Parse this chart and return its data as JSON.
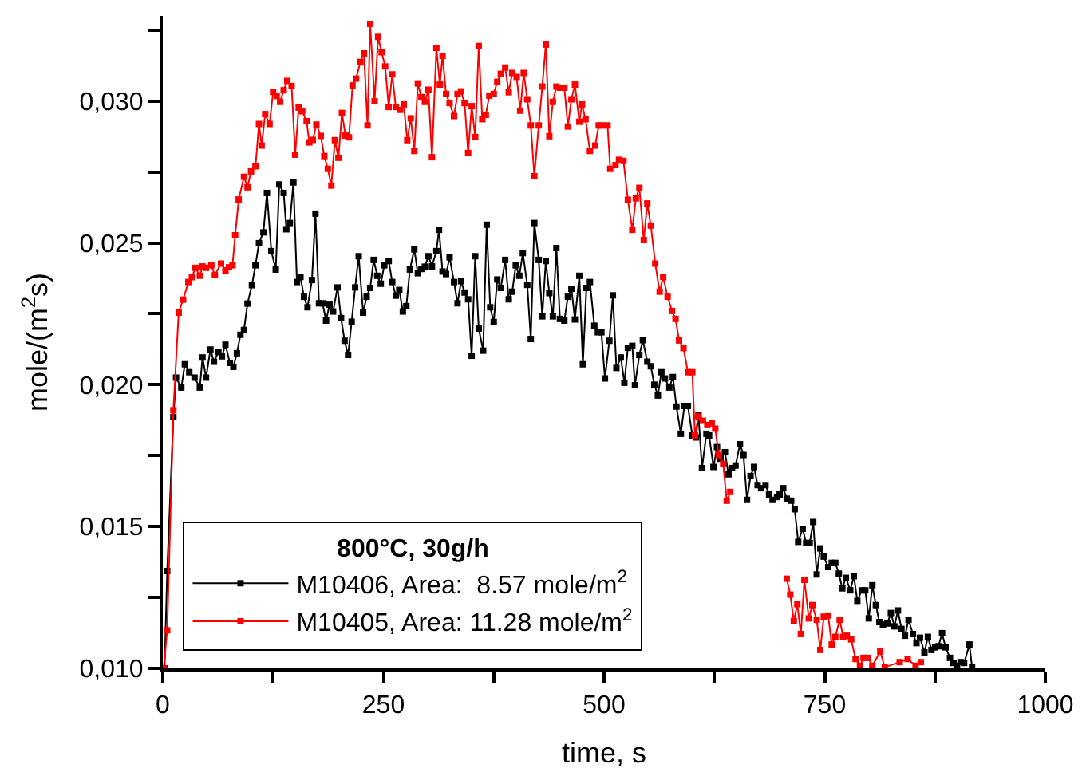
{
  "chart_data": {
    "type": "line",
    "xlabel": "time, s",
    "ylabel": "mole/(m$^{2}$s)",
    "legend_title": "800°C, 30g/h",
    "legend": "bottom left",
    "marker": "square",
    "line_style": "solid",
    "xlim": [
      0,
      1000
    ],
    "xticks": [
      0,
      {
        "value": 125,
        "label": null
      },
      250,
      {
        "value": 375,
        "label": null
      },
      500,
      {
        "value": 625,
        "label": null
      },
      750,
      {
        "value": 875,
        "label": null
      },
      1000
    ],
    "ylim": [
      0.01,
      0.033
    ],
    "yticks": [
      {
        "value": 0.01,
        "label": "0,010"
      },
      {
        "value": 0.0125,
        "label": null
      },
      {
        "value": 0.015,
        "label": "0,015"
      },
      {
        "value": 0.0175,
        "label": null
      },
      {
        "value": 0.02,
        "label": "0,020"
      },
      {
        "value": 0.0225,
        "label": null
      },
      {
        "value": 0.025,
        "label": "0,025"
      },
      {
        "value": 0.0275,
        "label": null
      },
      {
        "value": 0.03,
        "label": "0,030"
      },
      {
        "value": 0.0325,
        "label": null
      }
    ],
    "series": [
      {
        "name": "M10406, Area:  8.57 mole/m$^{2}$",
        "color": "#000000",
        "x": [
          2,
          5,
          12,
          15,
          21,
          25,
          30,
          36,
          42,
          45,
          49,
          54,
          58,
          63,
          67,
          71,
          76,
          80,
          84,
          88,
          92,
          96,
          101,
          105,
          109,
          114,
          118,
          123,
          128,
          132,
          137,
          140,
          144,
          148,
          152,
          156,
          160,
          164,
          169,
          173,
          177,
          181,
          185,
          189,
          193,
          198,
          202,
          206,
          210,
          214,
          218,
          222,
          227,
          231,
          235,
          239,
          243,
          247,
          251,
          256,
          260,
          264,
          268,
          272,
          276,
          280,
          285,
          289,
          293,
          297,
          301,
          305,
          310,
          313,
          317,
          321,
          325,
          330,
          334,
          338,
          342,
          346,
          350,
          354,
          358,
          363,
          367,
          371,
          375,
          379,
          383,
          388,
          392,
          396,
          400,
          404,
          408,
          413,
          417,
          421,
          426,
          430,
          434,
          438,
          442,
          446,
          450,
          455,
          459,
          463,
          467,
          472,
          476,
          480,
          484,
          489,
          493,
          497,
          501,
          506,
          510,
          514,
          519,
          523,
          527,
          532,
          535,
          540,
          544,
          549,
          553,
          557,
          561,
          565,
          569,
          574,
          578,
          582,
          587,
          591,
          595,
          600,
          604,
          607,
          611,
          616,
          619,
          624,
          628,
          632,
          637,
          641,
          645,
          649,
          654,
          658,
          662,
          666,
          670,
          674,
          678,
          683,
          687,
          691,
          696,
          699,
          703,
          707,
          712,
          716,
          720,
          725,
          729,
          733,
          737,
          741,
          745,
          749,
          754,
          758,
          762,
          766,
          770,
          774,
          779,
          783,
          787,
          792,
          796,
          800,
          804,
          808,
          812,
          816,
          821,
          825,
          829,
          833,
          837,
          841,
          845,
          850,
          854,
          858,
          863,
          867,
          871,
          875,
          879,
          883,
          887,
          892,
          896,
          900,
          904,
          908,
          914,
          917
        ],
        "values": [
          0.01,
          0.01343,
          0.01886,
          0.02025,
          0.0199,
          0.02072,
          0.02044,
          0.02025,
          0.0199,
          0.02096,
          0.02025,
          0.02124,
          0.02081,
          0.02115,
          0.021,
          0.02141,
          0.02077,
          0.02063,
          0.02111,
          0.02176,
          0.02193,
          0.02286,
          0.02351,
          0.02421,
          0.02499,
          0.02537,
          0.02676,
          0.02471,
          0.02406,
          0.02706,
          0.02676,
          0.02548,
          0.0257,
          0.02713,
          0.02362,
          0.0238,
          0.0231,
          0.02273,
          0.02369,
          0.02603,
          0.02287,
          0.02287,
          0.02226,
          0.02282,
          0.02258,
          0.02343,
          0.02235,
          0.02155,
          0.02105,
          0.02222,
          0.02343,
          0.02453,
          0.02254,
          0.0231,
          0.02341,
          0.0244,
          0.02384,
          0.02356,
          0.02421,
          0.02436,
          0.02362,
          0.02314,
          0.02334,
          0.02258,
          0.02277,
          0.02406,
          0.02477,
          0.02393,
          0.02408,
          0.02416,
          0.02453,
          0.02417,
          0.02471,
          0.02546,
          0.02399,
          0.0239,
          0.02449,
          0.02362,
          0.02287,
          0.02365,
          0.02325,
          0.02301,
          0.02102,
          0.02453,
          0.02198,
          0.0212,
          0.02564,
          0.02273,
          0.02221,
          0.02371,
          0.02341,
          0.0244,
          0.02301,
          0.02328,
          0.02421,
          0.02384,
          0.02464,
          0.02352,
          0.02161,
          0.0257,
          0.0244,
          0.02241,
          0.02436,
          0.02323,
          0.02241,
          0.02482,
          0.02232,
          0.02226,
          0.0231,
          0.02338,
          0.0223,
          0.02384,
          0.02072,
          0.02341,
          0.02362,
          0.02208,
          0.02185,
          0.02185,
          0.02022,
          0.02155,
          0.02315,
          0.02059,
          0.02096,
          0.02007,
          0.0213,
          0.02137,
          0.01998,
          0.02105,
          0.02157,
          0.02081,
          0.02065,
          0.02,
          0.01962,
          0.02044,
          0.02022,
          0.0199,
          0.02027,
          0.01923,
          0.01827,
          0.01925,
          0.01925,
          0.01821,
          0.01814,
          0.01892,
          0.01706,
          0.01827,
          0.01821,
          0.0171,
          0.0178,
          0.01739,
          0.01762,
          0.01684,
          0.01706,
          0.01715,
          0.0179,
          0.01752,
          0.01594,
          0.01678,
          0.0171,
          0.01646,
          0.01635,
          0.01646,
          0.01613,
          0.01594,
          0.01604,
          0.01613,
          0.01635,
          0.01598,
          0.01591,
          0.01561,
          0.01446,
          0.01492,
          0.01442,
          0.01442,
          0.01516,
          0.01331,
          0.01423,
          0.01394,
          0.01357,
          0.01372,
          0.01372,
          0.01334,
          0.01282,
          0.01319,
          0.01275,
          0.01325,
          0.01238,
          0.01275,
          0.01275,
          0.01176,
          0.01293,
          0.01223,
          0.01163,
          0.01154,
          0.01158,
          0.01195,
          0.01148,
          0.01204,
          0.01139,
          0.01115,
          0.01171,
          0.01121,
          0.01089,
          0.01108,
          0.01056,
          0.01111,
          0.01065,
          0.01074,
          0.01078,
          0.01124,
          0.01074,
          0.01037,
          0.01019,
          0.01009,
          0.01022,
          0.01019,
          0.01084,
          0.01004
        ]
      },
      {
        "name": "M10405, Area: 11.28 mole/m$^{2}$",
        "color": "#ff0000",
        "x": [
          1,
          5,
          12,
          18,
          23,
          29,
          33,
          37,
          42,
          45,
          49,
          55,
          59,
          66,
          71,
          75,
          79,
          82,
          86,
          92,
          96,
          100,
          105,
          109,
          112,
          116,
          121,
          125,
          129,
          133,
          137,
          141,
          146,
          150,
          154,
          158,
          163,
          166,
          170,
          174,
          179,
          183,
          187,
          191,
          195,
          199,
          203,
          207,
          211,
          215,
          219,
          224,
          228,
          232,
          235,
          240,
          244,
          248,
          252,
          256,
          260,
          264,
          269,
          273,
          277,
          281,
          285,
          289,
          293,
          297,
          301,
          305,
          310,
          314,
          317,
          321,
          325,
          330,
          334,
          338,
          342,
          346,
          350,
          354,
          358,
          362,
          366,
          370,
          375,
          379,
          383,
          388,
          392,
          396,
          401,
          405,
          409,
          413,
          417,
          421,
          426,
          430,
          434,
          438,
          442,
          446,
          450,
          455,
          459,
          463,
          467,
          472,
          475,
          479,
          484,
          490,
          494,
          498,
          504,
          507,
          513,
          517,
          522,
          527,
          532,
          536,
          540,
          545,
          549,
          553,
          558,
          563,
          567,
          572,
          577,
          581,
          585,
          590,
          595,
          600,
          603,
          607,
          612,
          617,
          622,
          626,
          630,
          635,
          639,
          643,
          675,
          707,
          711,
          715,
          719,
          723,
          727,
          732,
          736,
          741,
          745,
          749,
          754,
          758,
          762,
          767,
          771,
          775,
          780,
          785,
          790,
          794,
          799,
          804,
          813,
          818,
          835,
          844,
          853,
          859
        ],
        "values": [
          0.01,
          0.01134,
          0.0191,
          0.02254,
          0.023,
          0.02362,
          0.02379,
          0.02412,
          0.02384,
          0.02417,
          0.02412,
          0.02421,
          0.02386,
          0.02427,
          0.02403,
          0.02414,
          0.02421,
          0.02527,
          0.02653,
          0.02733,
          0.02696,
          0.02752,
          0.0277,
          0.02919,
          0.02843,
          0.02954,
          0.02919,
          0.03032,
          0.03018,
          0.02997,
          0.03038,
          0.03071,
          0.03053,
          0.02811,
          0.02977,
          0.02964,
          0.02929,
          0.02854,
          0.02863,
          0.02917,
          0.02877,
          0.02806,
          0.02761,
          0.02702,
          0.02862,
          0.028,
          0.02958,
          0.02878,
          0.02872,
          0.03055,
          0.03079,
          0.03138,
          0.03168,
          0.02914,
          0.03272,
          0.02999,
          0.03226,
          0.03172,
          0.03122,
          0.02979,
          0.03094,
          0.02979,
          0.02969,
          0.02988,
          0.02862,
          0.02939,
          0.02824,
          0.03062,
          0.03014,
          0.02997,
          0.0304,
          0.02802,
          0.03187,
          0.03058,
          0.03159,
          0.03025,
          0.02993,
          0.02947,
          0.03025,
          0.03034,
          0.02993,
          0.02817,
          0.02982,
          0.02873,
          0.03194,
          0.02936,
          0.02951,
          0.03019,
          0.03025,
          0.03068,
          0.03096,
          0.03118,
          0.03031,
          0.03099,
          0.03085,
          0.02966,
          0.03099,
          0.03006,
          0.02914,
          0.02735,
          0.02914,
          0.03051,
          0.03199,
          0.02876,
          0.02997,
          0.03051,
          0.03047,
          0.03047,
          0.0291,
          0.03006,
          0.03058,
          0.02927,
          0.02988,
          0.02936,
          0.02824,
          0.02843,
          0.02914,
          0.02914,
          0.02914,
          0.02761,
          0.02774,
          0.02793,
          0.02789,
          0.02652,
          0.02546,
          0.02657,
          0.02694,
          0.0251,
          0.02639,
          0.02561,
          0.02427,
          0.02328,
          0.0238,
          0.0231,
          0.0226,
          0.02232,
          0.02156,
          0.02129,
          0.02044,
          0.02044,
          0.01821,
          0.01888,
          0.01873,
          0.01858,
          0.01864,
          0.01845,
          0.01752,
          0.01721,
          0.01591,
          0.01622,
          null,
          0.01316,
          0.0126,
          0.01167,
          0.01226,
          0.01121,
          0.01312,
          0.01176,
          0.01223,
          0.01171,
          0.01065,
          0.01182,
          0.01186,
          0.01084,
          0.01111,
          0.01171,
          0.01111,
          0.01115,
          0.01102,
          0.01033,
          0.01009,
          0.01037,
          0.01037,
          0.01009,
          0.01059,
          0.01004,
          0.01022,
          0.01033,
          0.01009,
          0.01022
        ]
      }
    ]
  }
}
